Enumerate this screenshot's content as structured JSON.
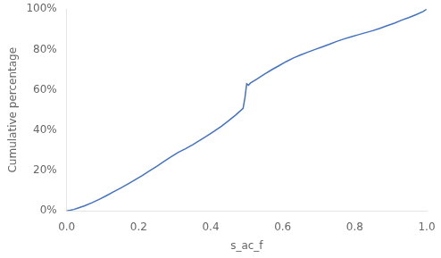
{
  "chart_data": {
    "type": "line",
    "xlabel": "s_ac_f",
    "ylabel": "Cumulative percentage",
    "color": "#4472C4",
    "grid": false,
    "xlim": [
      0,
      1.0
    ],
    "ylim": [
      0,
      1.0
    ],
    "xticks": [
      {
        "value": 0,
        "label": "0.0"
      },
      0.2,
      0.4,
      0.6,
      0.8,
      {
        "value": 1.0,
        "label": "1.0"
      }
    ],
    "yticks": [
      {
        "value": 0,
        "label": "0%"
      },
      {
        "value": 0.2,
        "label": "20%"
      },
      {
        "value": 0.4,
        "label": "40%"
      },
      {
        "value": 0.6,
        "label": "60%"
      },
      {
        "value": 0.8,
        "label": "80%"
      },
      {
        "value": 1.0,
        "label": "100%"
      }
    ],
    "x": [
      0.0,
      0.01,
      0.02,
      0.03,
      0.05,
      0.07,
      0.09,
      0.11,
      0.13,
      0.15,
      0.17,
      0.19,
      0.21,
      0.23,
      0.25,
      0.27,
      0.29,
      0.31,
      0.33,
      0.35,
      0.37,
      0.39,
      0.41,
      0.43,
      0.45,
      0.47,
      0.49,
      0.495,
      0.5,
      0.505,
      0.51,
      0.53,
      0.55,
      0.57,
      0.59,
      0.61,
      0.63,
      0.65,
      0.67,
      0.69,
      0.71,
      0.73,
      0.75,
      0.77,
      0.79,
      0.81,
      0.83,
      0.85,
      0.87,
      0.89,
      0.91,
      0.93,
      0.95,
      0.97,
      0.99,
      1.0
    ],
    "values": [
      0.0,
      0.003,
      0.007,
      0.013,
      0.025,
      0.04,
      0.057,
      0.075,
      0.094,
      0.113,
      0.133,
      0.154,
      0.175,
      0.198,
      0.22,
      0.245,
      0.268,
      0.29,
      0.308,
      0.328,
      0.35,
      0.372,
      0.395,
      0.42,
      0.447,
      0.476,
      0.508,
      0.56,
      0.63,
      0.623,
      0.633,
      0.655,
      0.678,
      0.7,
      0.72,
      0.74,
      0.758,
      0.773,
      0.787,
      0.8,
      0.813,
      0.826,
      0.84,
      0.852,
      0.863,
      0.873,
      0.883,
      0.893,
      0.905,
      0.918,
      0.93,
      0.945,
      0.958,
      0.972,
      0.988,
      1.0
    ]
  }
}
